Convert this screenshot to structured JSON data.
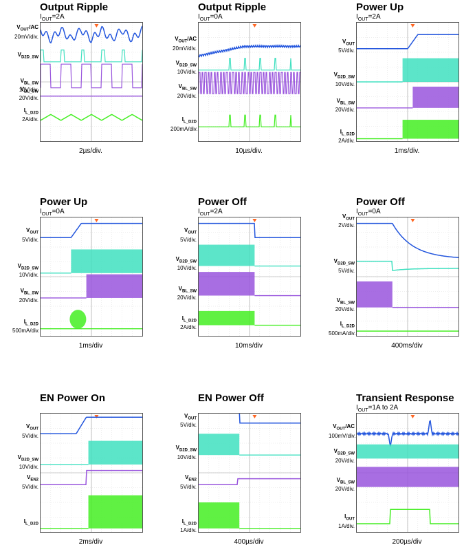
{
  "chart_data": [
    {
      "type": "line",
      "title": "Output Ripple",
      "subtitle": {
        "prefix": "I",
        "sub": "OUT",
        "suffix": "=2A"
      },
      "timebase": "2µs/div.",
      "channels": [
        {
          "name": "V",
          "sub": "OUT",
          "suffix": "/AC",
          "scale": "20mV/div.",
          "color": "#2255dd",
          "shape": "ripple",
          "level": 0.1,
          "amp": 0.08,
          "period": 0.2
        },
        {
          "name": "V",
          "sub": "D2D_SW",
          "suffix": "",
          "scale": "",
          "color": "#40e0c0",
          "shape": "burst",
          "level": 0.33,
          "amp": 0.1,
          "period": 0.2
        },
        {
          "name": "V",
          "sub": "BL_SW",
          "suffix": "",
          "scale": "10V/div.",
          "color": "#9955dd",
          "shape": "square",
          "level": 0.55,
          "amp": 0.2,
          "period": 0.2
        },
        {
          "name": "V",
          "sub": "BL_SW",
          "suffix": "",
          "scale": "20V/div.",
          "color": "#9955dd",
          "shape": "flat",
          "level": 0.62,
          "amp": 0,
          "period": 0.2
        },
        {
          "name": "I",
          "sub": "L_D2D",
          "suffix": "",
          "scale": "2A/div.",
          "color": "#44ee22",
          "shape": "tri",
          "level": 0.8,
          "amp": 0.05,
          "period": 0.2
        }
      ]
    },
    {
      "type": "line",
      "title": "Output Ripple",
      "subtitle": {
        "prefix": "I",
        "sub": "OUT",
        "suffix": "=0A"
      },
      "timebase": "10µs/div.",
      "channels": [
        {
          "name": "V",
          "sub": "OUT",
          "suffix": "/AC",
          "scale": "20mV/div.",
          "color": "#2255dd",
          "shape": "rise",
          "level": 0.2,
          "amp": 0.08,
          "period": 0.2
        },
        {
          "name": "V",
          "sub": "D2D_SW",
          "suffix": "",
          "scale": "10V/div.",
          "color": "#40e0c0",
          "shape": "spikes",
          "level": 0.4,
          "amp": 0.1,
          "period": 0.15
        },
        {
          "name": "V",
          "sub": "BL_SW",
          "suffix": "",
          "scale": "20V/div.",
          "color": "#9955dd",
          "shape": "dense",
          "level": 0.6,
          "amp": 0.18,
          "period": 0.03
        },
        {
          "name": "I",
          "sub": "L_D2D",
          "suffix": "",
          "scale": "200mA/div.",
          "color": "#44ee22",
          "shape": "spikes",
          "level": 0.88,
          "amp": 0.1,
          "period": 0.15
        }
      ]
    },
    {
      "type": "line",
      "title": "Power Up",
      "subtitle": {
        "prefix": "I",
        "sub": "OUT",
        "suffix": "=2A"
      },
      "timebase": "1ms/div.",
      "channels": [
        {
          "name": "V",
          "sub": "OUT",
          "suffix": "",
          "scale": "5V/div.",
          "color": "#2255dd",
          "shape": "step",
          "level": 0.22,
          "amp": 0.12,
          "period": 0.6
        },
        {
          "name": "V",
          "sub": "D2D_SW",
          "suffix": "",
          "scale": "10V/div.",
          "color": "#40e0c0",
          "shape": "blockup",
          "level": 0.5,
          "amp": 0.2,
          "period": 0.45
        },
        {
          "name": "V",
          "sub": "BL_SW",
          "suffix": "",
          "scale": "20V/div.",
          "color": "#9955dd",
          "shape": "blockup",
          "level": 0.72,
          "amp": 0.18,
          "period": 0.55
        },
        {
          "name": "I",
          "sub": "L_D2D",
          "suffix": "",
          "scale": "2A/div.",
          "color": "#44ee22",
          "shape": "blockup",
          "level": 0.98,
          "amp": 0.16,
          "period": 0.45
        }
      ]
    },
    {
      "type": "line",
      "title": "Power Up",
      "subtitle": {
        "prefix": "I",
        "sub": "OUT",
        "suffix": "=0A"
      },
      "timebase": "1ms/div",
      "channels": [
        {
          "name": "V",
          "sub": "OUT",
          "suffix": "",
          "scale": "5V/div.",
          "color": "#2255dd",
          "shape": "step",
          "level": 0.17,
          "amp": 0.12,
          "period": 0.4
        },
        {
          "name": "V",
          "sub": "D2D_SW",
          "suffix": "",
          "scale": "10V/div.",
          "color": "#40e0c0",
          "shape": "blockup",
          "level": 0.47,
          "amp": 0.2,
          "period": 0.3
        },
        {
          "name": "V",
          "sub": "BL_SW",
          "suffix": "",
          "scale": "20V/div.",
          "color": "#9955dd",
          "shape": "blockup",
          "level": 0.68,
          "amp": 0.2,
          "period": 0.45
        },
        {
          "name": "I",
          "sub": "L_D2D",
          "suffix": "",
          "scale": "500mA/div.",
          "color": "#44ee22",
          "shape": "bump",
          "level": 0.94,
          "amp": 0.16,
          "period": 0.3
        }
      ]
    },
    {
      "type": "line",
      "title": "Power Off",
      "subtitle": {
        "prefix": "I",
        "sub": "OUT",
        "suffix": "=2A"
      },
      "timebase": "10ms/div",
      "channels": [
        {
          "name": "V",
          "sub": "OUT",
          "suffix": "",
          "scale": "5V/div.",
          "color": "#2255dd",
          "shape": "fall",
          "level": 0.17,
          "amp": 0.12,
          "period": 0.55
        },
        {
          "name": "V",
          "sub": "D2D_SW",
          "suffix": "",
          "scale": "10V/div.",
          "color": "#40e0c0",
          "shape": "blockoff",
          "level": 0.41,
          "amp": 0.18,
          "period": 0.55
        },
        {
          "name": "V",
          "sub": "BL_SW",
          "suffix": "",
          "scale": "20V/div.",
          "color": "#9955dd",
          "shape": "blockoff",
          "level": 0.66,
          "amp": 0.2,
          "period": 0.55
        },
        {
          "name": "I",
          "sub": "L_D2D",
          "suffix": "",
          "scale": "2A/div.",
          "color": "#44ee22",
          "shape": "blockoff",
          "level": 0.91,
          "amp": 0.12,
          "period": 0.55
        }
      ]
    },
    {
      "type": "line",
      "title": "Power Off",
      "subtitle": {
        "prefix": "I",
        "sub": "OUT",
        "suffix": "=0A"
      },
      "timebase": "400ms/div",
      "channels": [
        {
          "name": "V",
          "sub": "OUT",
          "suffix": "",
          "scale": "2V/div.",
          "color": "#2255dd",
          "shape": "decay",
          "level": 0.05,
          "amp": 0.3,
          "period": 0.35
        },
        {
          "name": "V",
          "sub": "D2D_SW",
          "suffix": "",
          "scale": "5V/div.",
          "color": "#40e0c0",
          "shape": "decaysmall",
          "level": 0.43,
          "amp": 0.06,
          "period": 0.35
        },
        {
          "name": "V",
          "sub": "BL_SW",
          "suffix": "",
          "scale": "20V/div.",
          "color": "#9955dd",
          "shape": "blockoff",
          "level": 0.76,
          "amp": 0.22,
          "period": 0.35
        },
        {
          "name": "I",
          "sub": "L_D2D",
          "suffix": "",
          "scale": "500mA/div.",
          "color": "#44ee22",
          "shape": "flat",
          "level": 0.96,
          "amp": 0,
          "period": 0.35
        }
      ]
    },
    {
      "type": "line",
      "title": "EN Power On",
      "subtitle": null,
      "timebase": "2ms/div",
      "channels": [
        {
          "name": "V",
          "sub": "OUT",
          "suffix": "",
          "scale": "5V/div.",
          "color": "#2255dd",
          "shape": "step",
          "level": 0.17,
          "amp": 0.14,
          "period": 0.45
        },
        {
          "name": "V",
          "sub": "D2D_SW",
          "suffix": "",
          "scale": "10V/div.",
          "color": "#40e0c0",
          "shape": "blockup",
          "level": 0.43,
          "amp": 0.2,
          "period": 0.47
        },
        {
          "name": "V",
          "sub": "EN2",
          "suffix": "",
          "scale": "5V/div.",
          "color": "#9955dd",
          "shape": "stepup",
          "level": 0.6,
          "amp": 0.12,
          "period": 0.45
        },
        {
          "name": "I",
          "sub": "L_D2D",
          "suffix": "",
          "scale": "",
          "color": "#44ee22",
          "shape": "blockup",
          "level": 0.97,
          "amp": 0.28,
          "period": 0.47
        }
      ]
    },
    {
      "type": "line",
      "title": "EN Power Off",
      "subtitle": null,
      "timebase": "400µs/div",
      "channels": [
        {
          "name": "V",
          "sub": "OUT",
          "suffix": "",
          "scale": "5V/div.",
          "color": "#2255dd",
          "shape": "fall",
          "level": 0.08,
          "amp": 0.12,
          "period": 0.4
        },
        {
          "name": "V",
          "sub": "D2D_SW",
          "suffix": "",
          "scale": "10V/div.",
          "color": "#40e0c0",
          "shape": "blockoff",
          "level": 0.35,
          "amp": 0.18,
          "period": 0.4
        },
        {
          "name": "V",
          "sub": "EN2",
          "suffix": "",
          "scale": "5V/div.",
          "color": "#9955dd",
          "shape": "stepup",
          "level": 0.6,
          "amp": 0.05,
          "period": 0.38
        },
        {
          "name": "I",
          "sub": "L_D2D",
          "suffix": "",
          "scale": "1A/div.",
          "color": "#44ee22",
          "shape": "blockoff",
          "level": 0.97,
          "amp": 0.22,
          "period": 0.4
        }
      ]
    },
    {
      "type": "line",
      "title": "Transient Response",
      "subtitle": {
        "prefix": "I",
        "sub": "OUT",
        "suffix": "=1A to 2A"
      },
      "timebase": "200µs/div",
      "channels": [
        {
          "name": "V",
          "sub": "OUT",
          "suffix": "/AC",
          "scale": "100mV/div.",
          "color": "#2255dd",
          "shape": "transient",
          "level": 0.17,
          "amp": 0.08,
          "period": 0.25
        },
        {
          "name": "V",
          "sub": "D2D_SW",
          "suffix": "",
          "scale": "20V/div.",
          "color": "#40e0c0",
          "shape": "band",
          "level": 0.38,
          "amp": 0.12,
          "period": 0.25
        },
        {
          "name": "V",
          "sub": "BL_SW",
          "suffix": "",
          "scale": "20V/div.",
          "color": "#9955dd",
          "shape": "band",
          "level": 0.62,
          "amp": 0.17,
          "period": 0.25
        },
        {
          "name": "I",
          "sub": "OUT",
          "suffix": "",
          "scale": "1A/div.",
          "color": "#44ee22",
          "shape": "pulse",
          "level": 0.93,
          "amp": 0.12,
          "period": 0.25
        }
      ]
    }
  ]
}
